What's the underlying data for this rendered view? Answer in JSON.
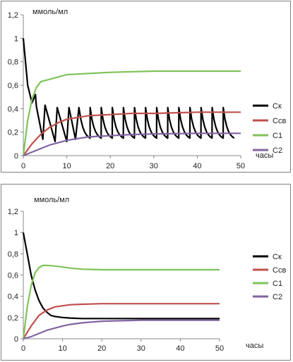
{
  "chart_data": [
    {
      "type": "line",
      "ylabel": "ммоль/мл",
      "xlabel": "часы",
      "xlim": [
        0,
        50
      ],
      "ylim": [
        0,
        1.2
      ],
      "x_ticks": [
        "0",
        "10",
        "20",
        "30",
        "40",
        "50"
      ],
      "y_ticks": [
        "0",
        "0,2",
        "0,4",
        "0,6",
        "0,8",
        "1",
        "1,2"
      ],
      "grid": false,
      "legend": "right",
      "series": [
        {
          "name": "Ск",
          "color": "#000000",
          "x": [
            0,
            1,
            2,
            2.8,
            3,
            4.5,
            5,
            7.3,
            7.8,
            10,
            10.5,
            12,
            12.8,
            15,
            15.5,
            50
          ],
          "y": [
            1.0,
            0.6,
            0.45,
            0.52,
            0.42,
            0.14,
            0.43,
            0.12,
            0.41,
            0.12,
            0.41,
            0.14,
            0.41,
            0.14,
            0.41,
            0.13
          ],
          "note_periodic_after_x": 12.8
        },
        {
          "name": "Ссв",
          "color": "#c0504d",
          "x": [
            0,
            2,
            4,
            6,
            8,
            10,
            15,
            20,
            25,
            30,
            40,
            50
          ],
          "y": [
            0,
            0.1,
            0.18,
            0.24,
            0.28,
            0.31,
            0.34,
            0.35,
            0.36,
            0.36,
            0.37,
            0.37
          ]
        },
        {
          "name": "С1",
          "color": "#7fc35a",
          "x": [
            0,
            1,
            2,
            3,
            4,
            6,
            8,
            10,
            15,
            20,
            30,
            40,
            50
          ],
          "y": [
            0,
            0.3,
            0.48,
            0.58,
            0.63,
            0.65,
            0.67,
            0.69,
            0.7,
            0.71,
            0.72,
            0.72,
            0.72
          ]
        },
        {
          "name": "С2",
          "color": "#8064a2",
          "x": [
            0,
            2,
            4,
            6,
            8,
            10,
            15,
            20,
            25,
            30,
            40,
            50
          ],
          "y": [
            0,
            0.03,
            0.06,
            0.09,
            0.11,
            0.13,
            0.16,
            0.17,
            0.18,
            0.185,
            0.19,
            0.19
          ]
        }
      ]
    },
    {
      "type": "line",
      "ylabel": "ммоль/мл",
      "xlabel": "часы",
      "xlim": [
        0,
        50
      ],
      "ylim": [
        0,
        1.2
      ],
      "x_ticks": [
        "0",
        "10",
        "20",
        "30",
        "40",
        "50"
      ],
      "y_ticks": [
        "0",
        "0,2",
        "0,4",
        "0,6",
        "0,8",
        "1",
        "1,2"
      ],
      "grid": false,
      "legend": "right",
      "series": [
        {
          "name": "Ск",
          "color": "#000000",
          "x": [
            0,
            1,
            2,
            3,
            4,
            5,
            6,
            7,
            8,
            10,
            12,
            15,
            20,
            30,
            40,
            50
          ],
          "y": [
            1.0,
            0.8,
            0.6,
            0.46,
            0.36,
            0.29,
            0.25,
            0.22,
            0.21,
            0.2,
            0.195,
            0.19,
            0.19,
            0.19,
            0.19,
            0.19
          ]
        },
        {
          "name": "Ссв",
          "color": "#c0504d",
          "x": [
            0,
            2,
            4,
            6,
            8,
            10,
            12,
            15,
            20,
            30,
            40,
            50
          ],
          "y": [
            0,
            0.12,
            0.22,
            0.27,
            0.3,
            0.31,
            0.32,
            0.325,
            0.33,
            0.33,
            0.33,
            0.33
          ]
        },
        {
          "name": "С1",
          "color": "#7fc35a",
          "x": [
            0,
            1,
            2,
            3,
            4,
            5,
            6,
            8,
            10,
            12,
            15,
            20,
            30,
            40,
            50
          ],
          "y": [
            0,
            0.3,
            0.5,
            0.62,
            0.67,
            0.69,
            0.69,
            0.685,
            0.675,
            0.665,
            0.655,
            0.65,
            0.65,
            0.65,
            0.65
          ]
        },
        {
          "name": "С2",
          "color": "#8064a2",
          "x": [
            0,
            2,
            4,
            6,
            8,
            10,
            12,
            15,
            20,
            25,
            30,
            40,
            50
          ],
          "y": [
            0,
            0.02,
            0.05,
            0.08,
            0.1,
            0.12,
            0.135,
            0.15,
            0.165,
            0.17,
            0.175,
            0.175,
            0.175
          ]
        }
      ]
    }
  ]
}
